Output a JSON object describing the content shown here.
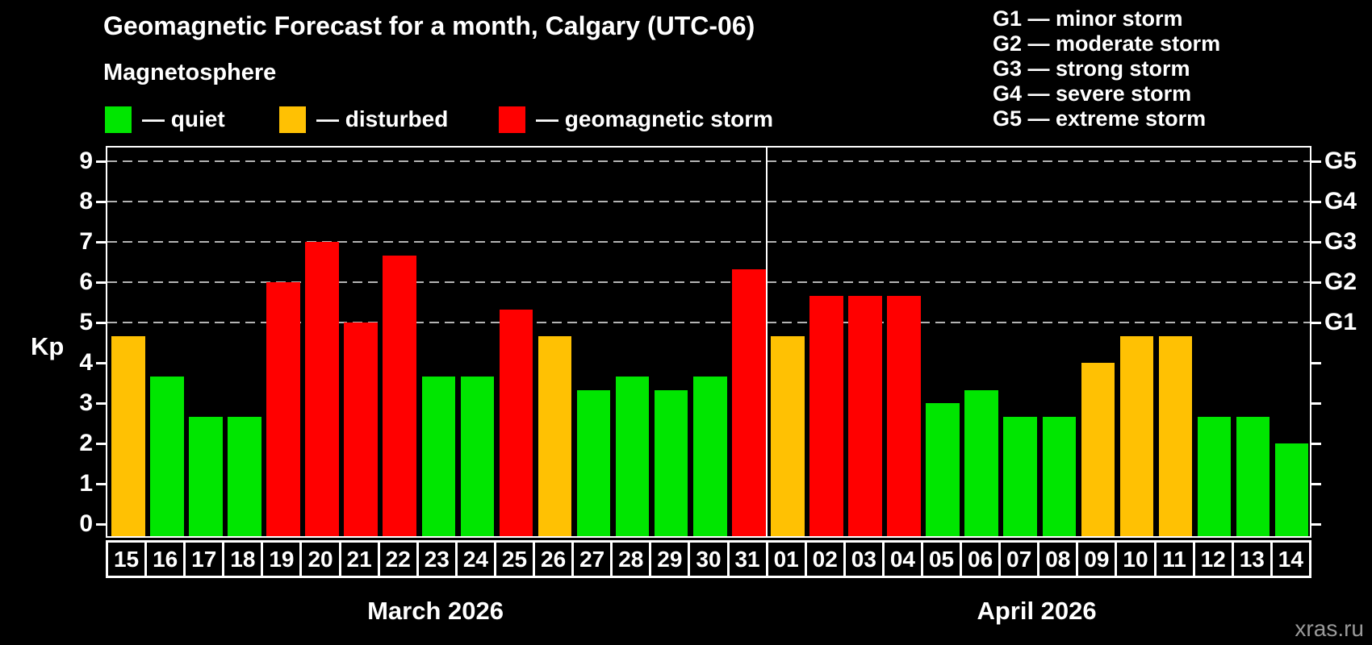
{
  "header": {
    "title": "Geomagnetic Forecast for a month, Calgary (UTC-06)",
    "subtitle": "Magnetosphere"
  },
  "legend": {
    "items": [
      {
        "swatch": "quiet",
        "label": "— quiet"
      },
      {
        "swatch": "disturbed",
        "label": "— disturbed"
      },
      {
        "swatch": "storm",
        "label": "— geomagnetic storm"
      }
    ]
  },
  "g_scale_legend": {
    "lines": [
      "G1 — minor storm",
      "G2 — moderate storm",
      "G3 — strong storm",
      "G4 — severe storm",
      "G5 — extreme storm"
    ]
  },
  "watermark": "xras.ru",
  "colors": {
    "quiet": "#00e600",
    "disturbed": "#ffc103",
    "storm": "#ff0000",
    "grid": "#b4b4b4",
    "axis": "#ffffff",
    "watermark": "#999999",
    "background": "#000000"
  },
  "chart_data": {
    "type": "bar",
    "title": "Geomagnetic Forecast for a month, Calgary (UTC-06)",
    "ylabel": "Kp",
    "ylim": [
      -0.3,
      9.33
    ],
    "y_ticks": [
      0,
      1,
      2,
      3,
      4,
      5,
      6,
      7,
      8,
      9
    ],
    "grid": "horizontal dashed lines at Kp 5,6,7,8,9 (G1–G5 levels)",
    "legend_position": "top",
    "right_axis_labels": [
      {
        "label": "G5",
        "kp": 9
      },
      {
        "label": "G4",
        "kp": 8
      },
      {
        "label": "G3",
        "kp": 7
      },
      {
        "label": "G2",
        "kp": 6
      },
      {
        "label": "G1",
        "kp": 5
      }
    ],
    "months": [
      {
        "label": "March 2026",
        "days": 17
      },
      {
        "label": "April 2026",
        "days": 14
      }
    ],
    "bars": [
      {
        "day": "15",
        "month": "March 2026",
        "kp": 4.67,
        "status": "disturbed"
      },
      {
        "day": "16",
        "month": "March 2026",
        "kp": 3.67,
        "status": "quiet"
      },
      {
        "day": "17",
        "month": "March 2026",
        "kp": 2.67,
        "status": "quiet"
      },
      {
        "day": "18",
        "month": "March 2026",
        "kp": 2.67,
        "status": "quiet"
      },
      {
        "day": "19",
        "month": "March 2026",
        "kp": 6.0,
        "status": "storm"
      },
      {
        "day": "20",
        "month": "March 2026",
        "kp": 7.0,
        "status": "storm"
      },
      {
        "day": "21",
        "month": "March 2026",
        "kp": 5.0,
        "status": "storm"
      },
      {
        "day": "22",
        "month": "March 2026",
        "kp": 6.67,
        "status": "storm"
      },
      {
        "day": "23",
        "month": "March 2026",
        "kp": 3.67,
        "status": "quiet"
      },
      {
        "day": "24",
        "month": "March 2026",
        "kp": 3.67,
        "status": "quiet"
      },
      {
        "day": "25",
        "month": "March 2026",
        "kp": 5.33,
        "status": "storm"
      },
      {
        "day": "26",
        "month": "March 2026",
        "kp": 4.67,
        "status": "disturbed"
      },
      {
        "day": "27",
        "month": "March 2026",
        "kp": 3.33,
        "status": "quiet"
      },
      {
        "day": "28",
        "month": "March 2026",
        "kp": 3.67,
        "status": "quiet"
      },
      {
        "day": "29",
        "month": "March 2026",
        "kp": 3.33,
        "status": "quiet"
      },
      {
        "day": "30",
        "month": "March 2026",
        "kp": 3.67,
        "status": "quiet"
      },
      {
        "day": "31",
        "month": "March 2026",
        "kp": 6.33,
        "status": "storm"
      },
      {
        "day": "01",
        "month": "April 2026",
        "kp": 4.67,
        "status": "disturbed"
      },
      {
        "day": "02",
        "month": "April 2026",
        "kp": 5.67,
        "status": "storm"
      },
      {
        "day": "03",
        "month": "April 2026",
        "kp": 5.67,
        "status": "storm"
      },
      {
        "day": "04",
        "month": "April 2026",
        "kp": 5.67,
        "status": "storm"
      },
      {
        "day": "05",
        "month": "April 2026",
        "kp": 3.0,
        "status": "quiet"
      },
      {
        "day": "06",
        "month": "April 2026",
        "kp": 3.33,
        "status": "quiet"
      },
      {
        "day": "07",
        "month": "April 2026",
        "kp": 2.67,
        "status": "quiet"
      },
      {
        "day": "08",
        "month": "April 2026",
        "kp": 2.67,
        "status": "quiet"
      },
      {
        "day": "09",
        "month": "April 2026",
        "kp": 4.0,
        "status": "disturbed"
      },
      {
        "day": "10",
        "month": "April 2026",
        "kp": 4.67,
        "status": "disturbed"
      },
      {
        "day": "11",
        "month": "April 2026",
        "kp": 4.67,
        "status": "disturbed"
      },
      {
        "day": "12",
        "month": "April 2026",
        "kp": 2.67,
        "status": "quiet"
      },
      {
        "day": "13",
        "month": "April 2026",
        "kp": 2.67,
        "status": "quiet"
      },
      {
        "day": "14",
        "month": "April 2026",
        "kp": 2.0,
        "status": "quiet"
      }
    ]
  }
}
